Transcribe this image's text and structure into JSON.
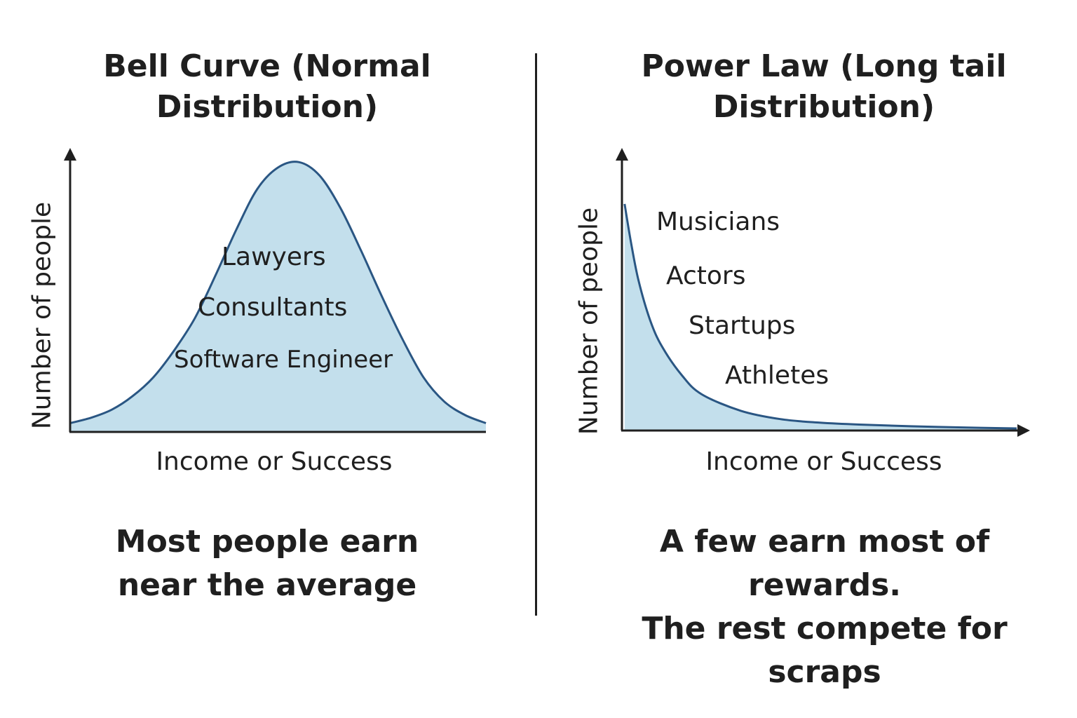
{
  "chart_data": [
    {
      "type": "area",
      "title_lines": [
        "Bell Curve (Normal",
        "Distribution)"
      ],
      "xlabel": "Income or Success",
      "ylabel": "Number of people",
      "caption_lines": [
        "Most people earn",
        "near the average"
      ],
      "annotations": [
        "Lawyers",
        "Consultants",
        "Software Engineer"
      ],
      "x": [
        0,
        0.5,
        1,
        1.5,
        2,
        2.5,
        3,
        3.5,
        4,
        4.5,
        5,
        5.5,
        6,
        6.5,
        7,
        7.5,
        8,
        8.5,
        9,
        9.5,
        10
      ],
      "y": [
        0.03,
        0.05,
        0.08,
        0.13,
        0.2,
        0.3,
        0.42,
        0.58,
        0.75,
        0.9,
        0.98,
        1.0,
        0.95,
        0.83,
        0.67,
        0.5,
        0.34,
        0.2,
        0.11,
        0.06,
        0.03
      ],
      "xlim": [
        0,
        10
      ],
      "ylim": [
        0,
        1.05
      ],
      "grid": false,
      "fill_color": "#c3dfec",
      "line_color": "#2a5683"
    },
    {
      "type": "area",
      "title_lines": [
        "Power Law (Long tail",
        "Distribution)"
      ],
      "xlabel": "Income or Success",
      "ylabel": "Number of people",
      "caption_lines": [
        "A few earn most of rewards.",
        "The rest compete for scraps"
      ],
      "annotations": [
        "Musicians",
        "Actors",
        "Startups",
        "Athletes"
      ],
      "x": [
        0.05,
        0.2,
        0.4,
        0.7,
        1.0,
        1.5,
        2.0,
        3.0,
        4.0,
        5.0,
        6.0,
        8.0,
        10.0
      ],
      "y": [
        0.95,
        0.8,
        0.63,
        0.46,
        0.35,
        0.23,
        0.15,
        0.08,
        0.045,
        0.03,
        0.022,
        0.012,
        0.006
      ],
      "xlim": [
        0,
        10
      ],
      "ylim": [
        0,
        1.1
      ],
      "grid": false,
      "fill_color": "#c3dfec",
      "line_color": "#2a5683"
    }
  ]
}
